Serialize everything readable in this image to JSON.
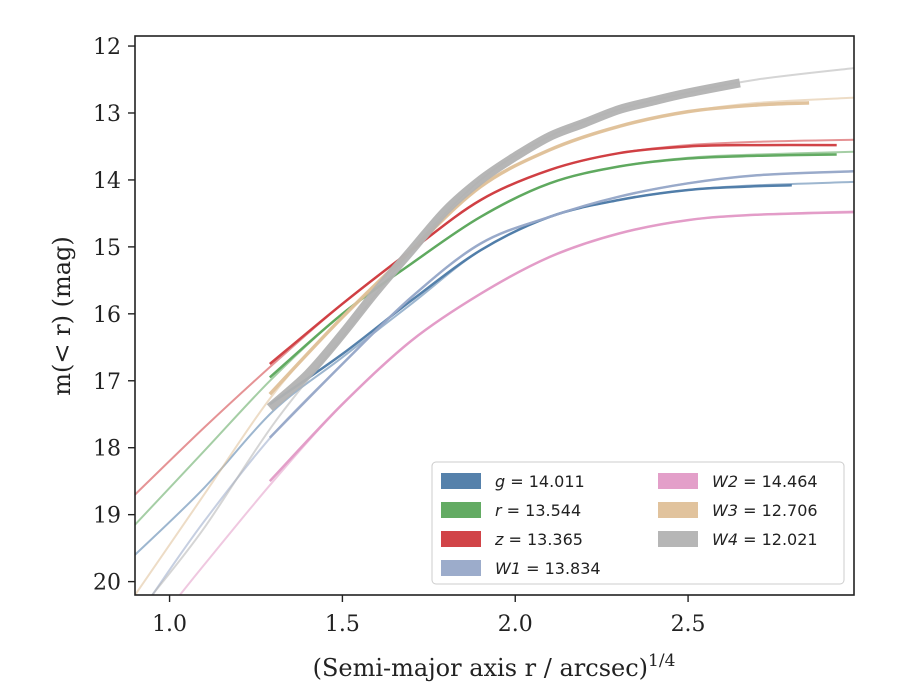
{
  "chart_data": {
    "type": "line",
    "title": "",
    "xlabel": "(Semi-major axis r / arcsec)",
    "xlabel_exponent": "1/4",
    "ylabel": "m(< r) (mag)",
    "xlim": [
      0.9,
      2.98
    ],
    "ylim": [
      20.2,
      11.85
    ],
    "y_inverted": true,
    "grid": false,
    "legend_position": "bottom-right",
    "x_ticks": [
      1.0,
      1.5,
      2.0,
      2.5
    ],
    "x_tick_labels": [
      "1.0",
      "1.5",
      "2.0",
      "2.5"
    ],
    "y_ticks": [
      12,
      13,
      14,
      15,
      16,
      17,
      18,
      19,
      20
    ],
    "y_tick_labels": [
      "12",
      "13",
      "14",
      "15",
      "16",
      "17",
      "18",
      "19",
      "20"
    ],
    "series": [
      {
        "name": "g = 14.011",
        "legend_base": "g",
        "legend_value": "14.011",
        "color": "#4c7aa7",
        "model_x": [
          0.9,
          1.1,
          1.3,
          1.5,
          1.7,
          1.9,
          2.1,
          2.3,
          2.5,
          2.7,
          2.98
        ],
        "model_y": [
          19.6,
          18.6,
          17.45,
          16.65,
          15.85,
          15.05,
          14.55,
          14.3,
          14.15,
          14.08,
          14.03
        ],
        "data_x": [
          1.29,
          1.5,
          1.7,
          1.9,
          2.1,
          2.3,
          2.5,
          2.67,
          2.8
        ],
        "data_y": [
          17.35,
          16.6,
          15.8,
          15.05,
          14.55,
          14.3,
          14.15,
          14.1,
          14.08
        ]
      },
      {
        "name": "r = 13.544",
        "legend_base": "r",
        "legend_value": "13.544",
        "color": "#5ba65b",
        "model_x": [
          0.9,
          1.1,
          1.3,
          1.5,
          1.7,
          1.9,
          2.1,
          2.3,
          2.5,
          2.7,
          2.98
        ],
        "model_y": [
          19.15,
          18.05,
          16.95,
          16.0,
          15.25,
          14.55,
          14.05,
          13.8,
          13.67,
          13.62,
          13.58
        ],
        "data_x": [
          1.29,
          1.5,
          1.7,
          1.9,
          2.1,
          2.3,
          2.5,
          2.7,
          2.93
        ],
        "data_y": [
          16.95,
          16.0,
          15.25,
          14.55,
          14.05,
          13.8,
          13.68,
          13.64,
          13.62
        ]
      },
      {
        "name": "z = 13.365",
        "legend_base": "z",
        "legend_value": "13.365",
        "color": "#cf3a3e",
        "model_x": [
          0.9,
          1.1,
          1.3,
          1.5,
          1.7,
          1.9,
          2.1,
          2.3,
          2.5,
          2.7,
          2.98
        ],
        "model_y": [
          18.7,
          17.7,
          16.75,
          15.85,
          15.05,
          14.3,
          13.85,
          13.6,
          13.48,
          13.43,
          13.4
        ],
        "data_x": [
          1.29,
          1.5,
          1.7,
          1.9,
          2.1,
          2.3,
          2.5,
          2.7,
          2.93
        ],
        "data_y": [
          16.75,
          15.85,
          15.05,
          14.3,
          13.85,
          13.6,
          13.5,
          13.48,
          13.48
        ]
      },
      {
        "name": "W1 = 13.834",
        "legend_base": "W1",
        "legend_value": "13.834",
        "color": "#97a8c8",
        "model_x": [
          0.95,
          1.1,
          1.3,
          1.5,
          1.7,
          1.9,
          2.1,
          2.3,
          2.5,
          2.7,
          2.98
        ],
        "model_y": [
          20.2,
          19.1,
          17.8,
          16.75,
          15.75,
          14.95,
          14.55,
          14.25,
          14.05,
          13.93,
          13.87
        ],
        "data_x": [
          1.29,
          1.5,
          1.7,
          1.9,
          2.1,
          2.3,
          2.5,
          2.7,
          2.98
        ],
        "data_y": [
          17.85,
          16.75,
          15.75,
          14.95,
          14.55,
          14.25,
          14.05,
          13.93,
          13.87
        ]
      },
      {
        "name": "W2 = 14.464",
        "legend_base": "W2",
        "legend_value": "14.464",
        "color": "#e29ac6",
        "model_x": [
          1.03,
          1.1,
          1.3,
          1.5,
          1.7,
          1.9,
          2.1,
          2.3,
          2.5,
          2.7,
          2.98
        ],
        "model_y": [
          20.2,
          19.75,
          18.5,
          17.35,
          16.4,
          15.7,
          15.15,
          14.8,
          14.6,
          14.52,
          14.47
        ],
        "data_x": [
          1.29,
          1.5,
          1.7,
          1.9,
          2.1,
          2.3,
          2.5,
          2.7,
          2.98
        ],
        "data_y": [
          18.5,
          17.35,
          16.4,
          15.7,
          15.15,
          14.8,
          14.6,
          14.52,
          14.48
        ]
      },
      {
        "name": "W3 = 12.706",
        "legend_base": "W3",
        "legend_value": "12.706",
        "color": "#dfc098",
        "model_x": [
          0.9,
          1.1,
          1.3,
          1.5,
          1.7,
          1.9,
          2.1,
          2.3,
          2.5,
          2.7,
          2.98
        ],
        "model_y": [
          20.2,
          18.7,
          17.2,
          16.05,
          15.05,
          14.1,
          13.55,
          13.2,
          12.98,
          12.85,
          12.77
        ],
        "data_x": [
          1.29,
          1.5,
          1.7,
          1.9,
          2.1,
          2.3,
          2.5,
          2.7,
          2.85
        ],
        "data_y": [
          17.2,
          16.05,
          15.05,
          14.1,
          13.55,
          13.2,
          12.98,
          12.88,
          12.85
        ]
      },
      {
        "name": "W4 = 12.021",
        "legend_base": "W4",
        "legend_value": "12.021",
        "color": "#b2b2b2",
        "model_x": [
          0.95,
          1.1,
          1.3,
          1.5,
          1.7,
          1.9,
          2.1,
          2.3,
          2.5,
          2.7,
          2.98
        ],
        "model_y": [
          20.2,
          19.2,
          17.65,
          16.35,
          15.05,
          14.0,
          13.35,
          12.95,
          12.7,
          12.5,
          12.33
        ],
        "data_x": [
          1.29,
          1.4,
          1.5,
          1.6,
          1.7,
          1.8,
          1.9,
          2.0,
          2.1,
          2.2,
          2.3,
          2.4,
          2.5,
          2.65
        ],
        "data_y": [
          17.4,
          16.9,
          16.3,
          15.65,
          15.05,
          14.45,
          14.0,
          13.65,
          13.35,
          13.15,
          12.95,
          12.82,
          12.7,
          12.55
        ]
      }
    ]
  }
}
